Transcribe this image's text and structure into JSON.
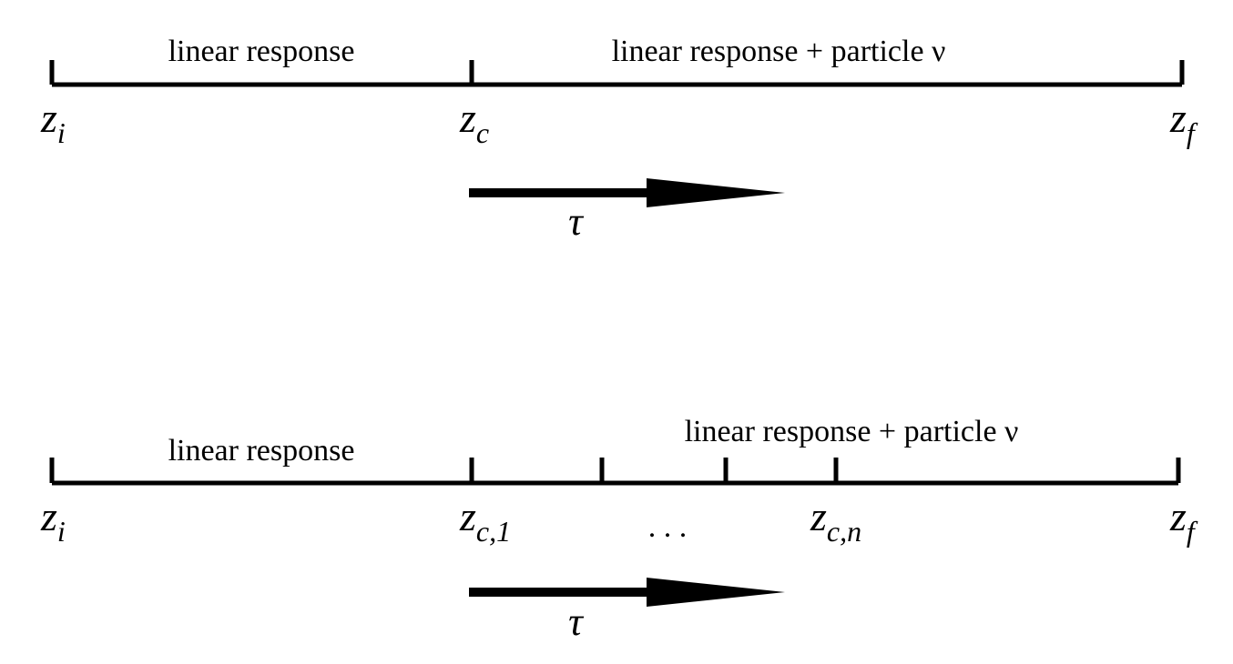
{
  "top": {
    "left_region": "linear response",
    "right_region": "linear response + particle ν",
    "labels": [
      {
        "main": "z",
        "sub": "i"
      },
      {
        "main": "z",
        "sub": "c"
      },
      {
        "main": "z",
        "sub": "f"
      }
    ],
    "arrow_label": "τ"
  },
  "bottom": {
    "left_region": "linear response",
    "right_region": "linear response + particle ν",
    "labels": [
      {
        "main": "z",
        "sub": "i"
      },
      {
        "main": "z",
        "sub": "c,1"
      },
      {
        "main": "z",
        "sub": "c,n"
      },
      {
        "main": "z",
        "sub": "f"
      }
    ],
    "ellipsis": ". . .",
    "arrow_label": "τ"
  }
}
